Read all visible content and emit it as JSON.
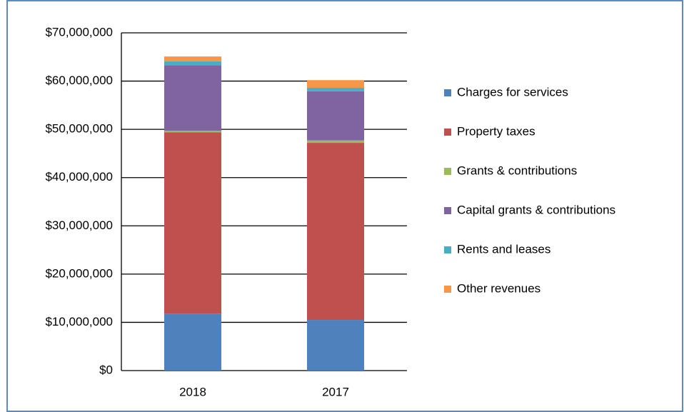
{
  "chart_data": {
    "type": "stacked_bar",
    "categories": [
      "2018",
      "2017"
    ],
    "series": [
      {
        "name": "Charges for services",
        "color": "#4f81bd",
        "values": [
          11800000,
          10500000
        ]
      },
      {
        "name": "Property taxes",
        "color": "#c0504d",
        "values": [
          37600000,
          36700000
        ]
      },
      {
        "name": "Grants & contributions",
        "color": "#9bbb59",
        "values": [
          300000,
          500000
        ]
      },
      {
        "name": "Capital grants & contributions",
        "color": "#8064a2",
        "values": [
          13600000,
          10200000
        ]
      },
      {
        "name": "Rents and leases",
        "color": "#4bacc6",
        "values": [
          800000,
          700000
        ]
      },
      {
        "name": "Other revenues",
        "color": "#f79646",
        "values": [
          1000000,
          1600000
        ]
      }
    ],
    "ylim": [
      0,
      70000000
    ],
    "yticks": [
      {
        "value": 0,
        "label": "$0"
      },
      {
        "value": 10000000,
        "label": "$10,000,000"
      },
      {
        "value": 20000000,
        "label": "$20,000,000"
      },
      {
        "value": 30000000,
        "label": "$30,000,000"
      },
      {
        "value": 40000000,
        "label": "$40,000,000"
      },
      {
        "value": 50000000,
        "label": "$50,000,000"
      },
      {
        "value": 60000000,
        "label": "$60,000,000"
      },
      {
        "value": 70000000,
        "label": "$70,000,000"
      }
    ],
    "grid": true,
    "legend": "right"
  }
}
